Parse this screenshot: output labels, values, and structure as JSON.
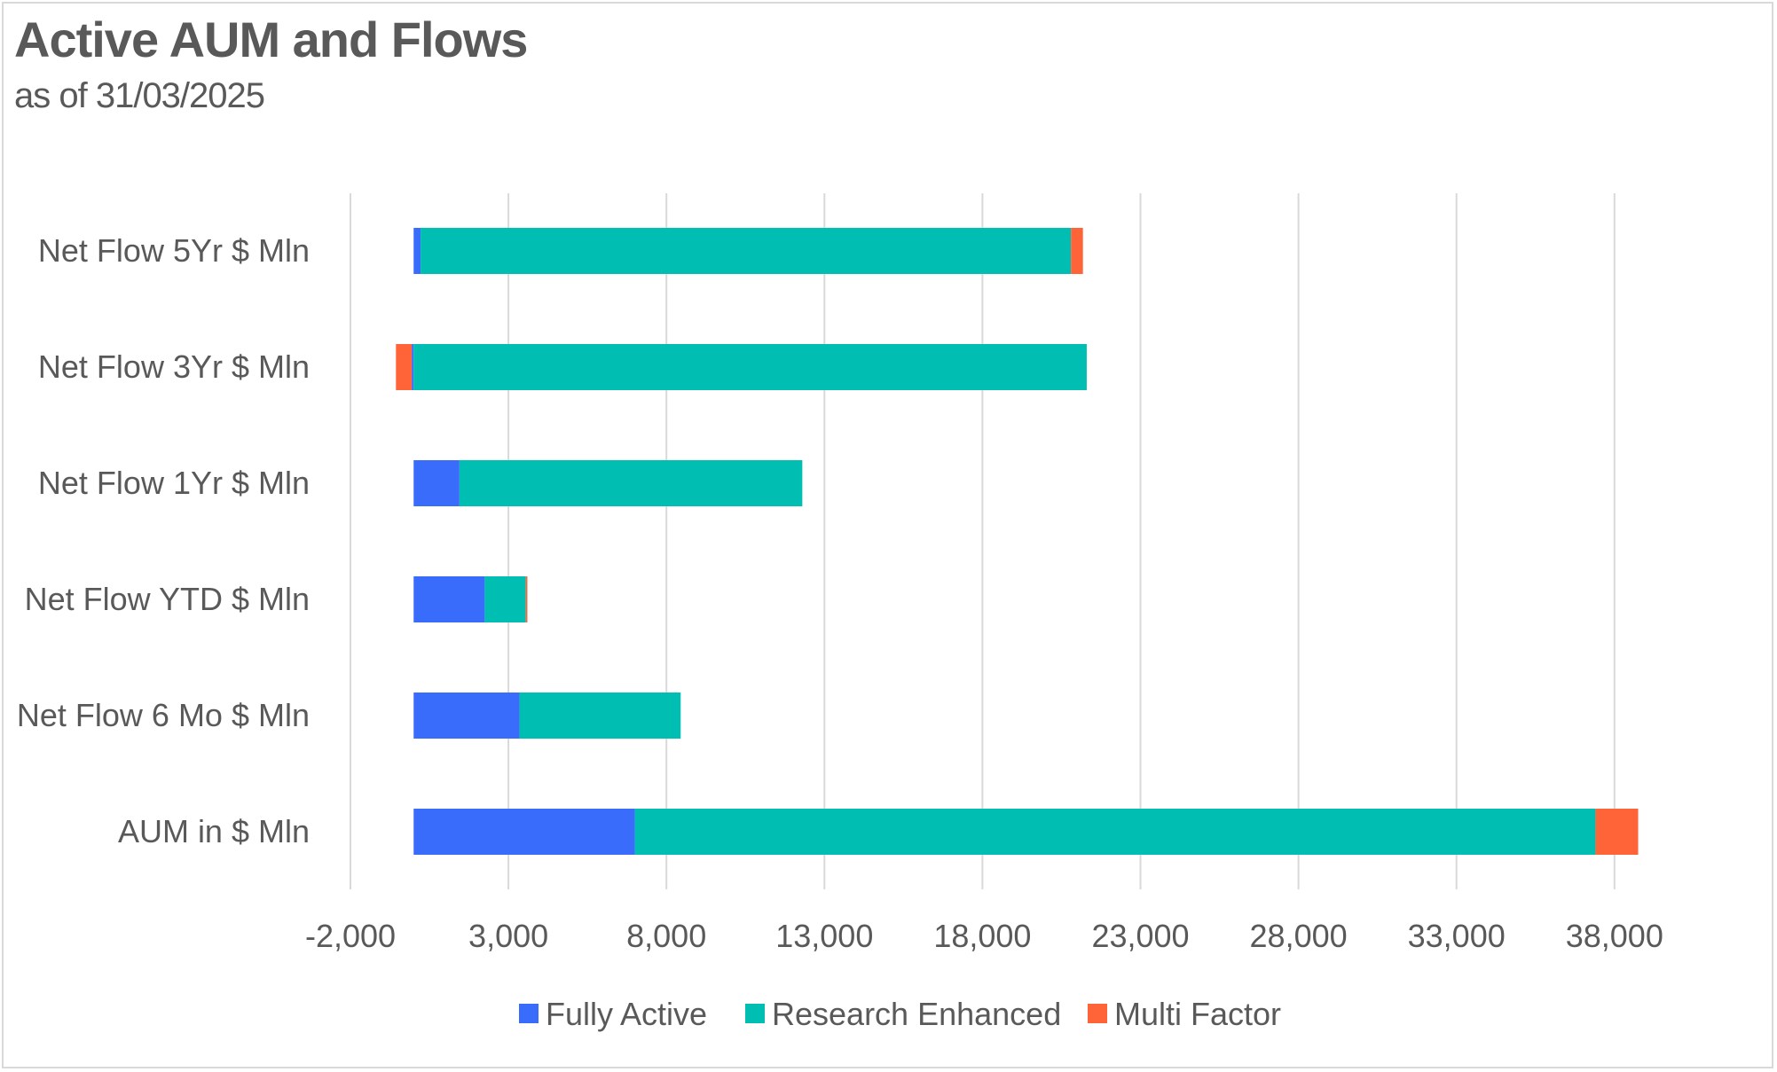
{
  "header": {
    "title": "Active AUM and Flows",
    "subtitle": "as of 31/03/2025"
  },
  "colors": {
    "fully_active": "#3A6CFB",
    "research_enhanced": "#00BFB2",
    "multi_factor": "#FF6338",
    "gridline": "#d9d9d9",
    "text": "#595959"
  },
  "chart_data": {
    "type": "bar",
    "orientation": "horizontal",
    "stacked": true,
    "categories": [
      "Net Flow 5Yr $ Mln",
      "Net Flow 3Yr $ Mln",
      "Net Flow 1Yr $ Mln",
      "Net Flow YTD $ Mln",
      "Net Flow 6 Mo $ Mln",
      "AUM in $ Mln"
    ],
    "series": [
      {
        "name": "Fully Active",
        "color_key": "fully_active",
        "values": [
          220,
          -60,
          1450,
          2250,
          3350,
          7000
        ]
      },
      {
        "name": "Research Enhanced",
        "color_key": "research_enhanced",
        "values": [
          20580,
          21300,
          10850,
          1300,
          5100,
          30400
        ]
      },
      {
        "name": "Multi Factor",
        "color_key": "multi_factor",
        "values": [
          380,
          -500,
          0,
          50,
          0,
          1350
        ]
      }
    ],
    "xlim": [
      -2000,
      40000
    ],
    "xticks": [
      -2000,
      3000,
      8000,
      13000,
      18000,
      23000,
      28000,
      33000,
      38000
    ],
    "xtick_labels": [
      "-2,000",
      "3,000",
      "8,000",
      "13,000",
      "18,000",
      "23,000",
      "28,000",
      "33,000",
      "38,000"
    ],
    "grid": "vertical",
    "legend": "bottom-center",
    "title": "Active AUM and Flows",
    "subtitle": "as of 31/03/2025",
    "xlabel": "",
    "ylabel": ""
  }
}
